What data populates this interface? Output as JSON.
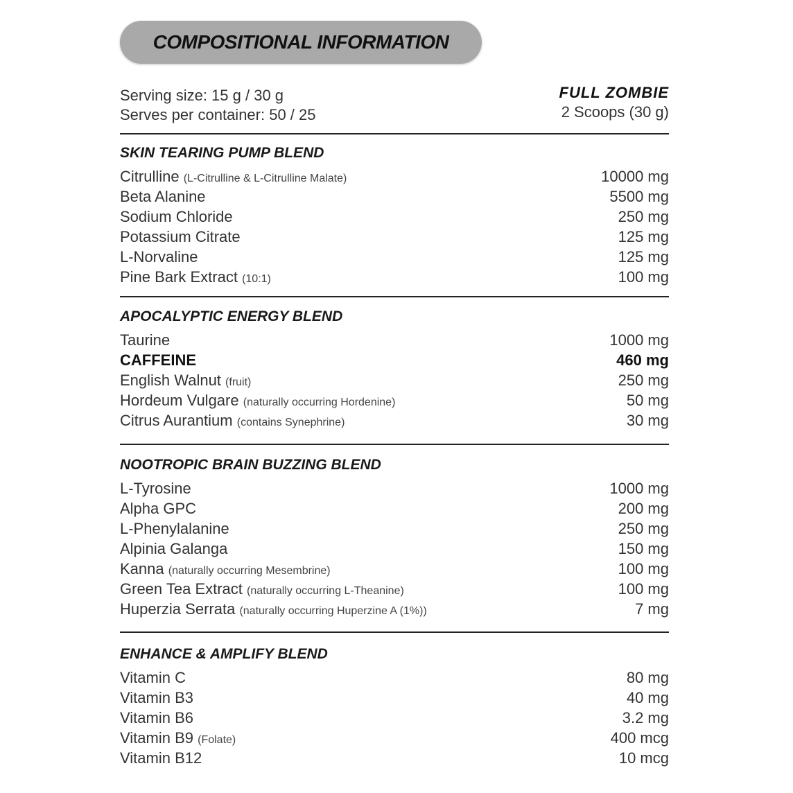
{
  "header": {
    "title": "COMPOSITIONAL INFORMATION"
  },
  "serving": {
    "size": "Serving size: 15 g / 30 g",
    "per_container": "Serves per container: 50 / 25"
  },
  "mode": {
    "name": "FULL ZOMBIE",
    "dose": "2 Scoops (30 g)"
  },
  "sections": [
    {
      "title": "SKIN TEARING PUMP BLEND",
      "rows": [
        {
          "name": "Citrulline",
          "note": "(L-Citrulline & L-Citrulline Malate)",
          "amount": "10000 mg"
        },
        {
          "name": "Beta Alanine",
          "note": "",
          "amount": "5500 mg"
        },
        {
          "name": "Sodium Chloride",
          "note": "",
          "amount": "250 mg"
        },
        {
          "name": "Potassium Citrate",
          "note": "",
          "amount": "125 mg"
        },
        {
          "name": "L-Norvaline",
          "note": "",
          "amount": "125 mg"
        },
        {
          "name": "Pine Bark Extract",
          "note": "(10:1)",
          "amount": "100 mg"
        }
      ]
    },
    {
      "title": "APOCALYPTIC ENERGY BLEND",
      "rows": [
        {
          "name": "Taurine",
          "note": "",
          "amount": "1000 mg"
        },
        {
          "name": "CAFFEINE",
          "note": "",
          "amount": "460 mg",
          "bold": true
        },
        {
          "name": "English Walnut",
          "note": "(fruit)",
          "amount": "250 mg"
        },
        {
          "name": "Hordeum Vulgare",
          "note": "(naturally occurring Hordenine)",
          "amount": "50 mg"
        },
        {
          "name": "Citrus Aurantium",
          "note": "(contains Synephrine)",
          "amount": "30 mg"
        }
      ]
    },
    {
      "title": "NOOTROPIC BRAIN BUZZING BLEND",
      "rows": [
        {
          "name": "L-Tyrosine",
          "note": "",
          "amount": "1000 mg"
        },
        {
          "name": "Alpha GPC",
          "note": "",
          "amount": "200 mg"
        },
        {
          "name": "L-Phenylalanine",
          "note": "",
          "amount": "250 mg"
        },
        {
          "name": "Alpinia Galanga",
          "note": "",
          "amount": "150 mg"
        },
        {
          "name": "Kanna",
          "note": "(naturally occurring Mesembrine)",
          "amount": "100 mg"
        },
        {
          "name": "Green Tea Extract",
          "note": "(naturally occurring L-Theanine)",
          "amount": "100 mg"
        },
        {
          "name": "Huperzia Serrata",
          "note": "(naturally occurring Huperzine A (1%))",
          "amount": "7 mg"
        }
      ]
    },
    {
      "title": "ENHANCE & AMPLIFY BLEND",
      "rows": [
        {
          "name": "Vitamin C",
          "note": "",
          "amount": "80 mg"
        },
        {
          "name": "Vitamin B3",
          "note": "",
          "amount": "40 mg"
        },
        {
          "name": "Vitamin B6",
          "note": "",
          "amount": "3.2 mg"
        },
        {
          "name": "Vitamin B9",
          "note": "(Folate)",
          "amount": "400 mcg"
        },
        {
          "name": "Vitamin B12",
          "note": "",
          "amount": "10 mcg"
        }
      ]
    }
  ]
}
